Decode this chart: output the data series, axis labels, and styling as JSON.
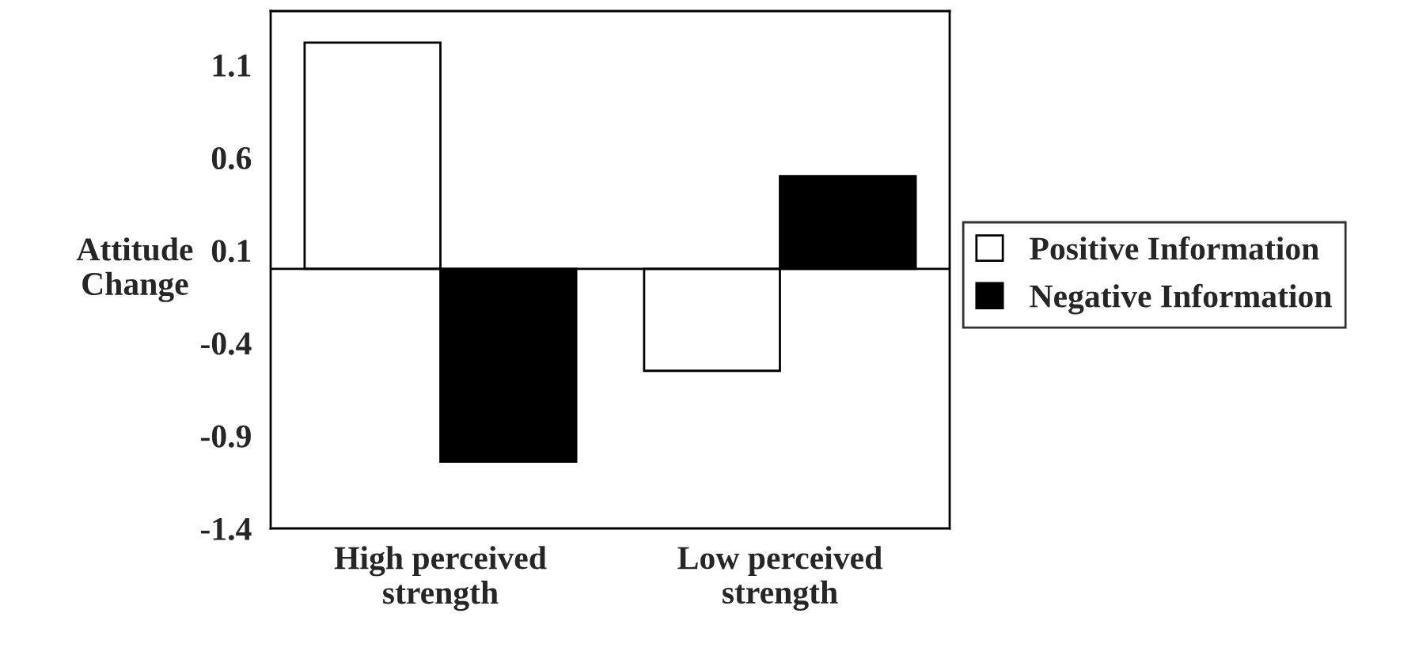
{
  "chart_data": {
    "type": "bar",
    "ylabel": "Attitude\nChange",
    "categories": [
      "High perceived\nstrength",
      "Low perceived\nstrength"
    ],
    "series": [
      {
        "name": "Positive Information",
        "color": "#ffffff",
        "values": [
          1.22,
          -0.55
        ]
      },
      {
        "name": "Negative Information",
        "color": "#000000",
        "values": [
          -1.04,
          0.5
        ]
      }
    ],
    "ylim": [
      -1.4,
      1.39
    ],
    "yticks": [
      -1.4,
      -0.9,
      -0.4,
      0.1,
      0.6,
      1.1
    ],
    "grid": false,
    "legend": "right"
  }
}
